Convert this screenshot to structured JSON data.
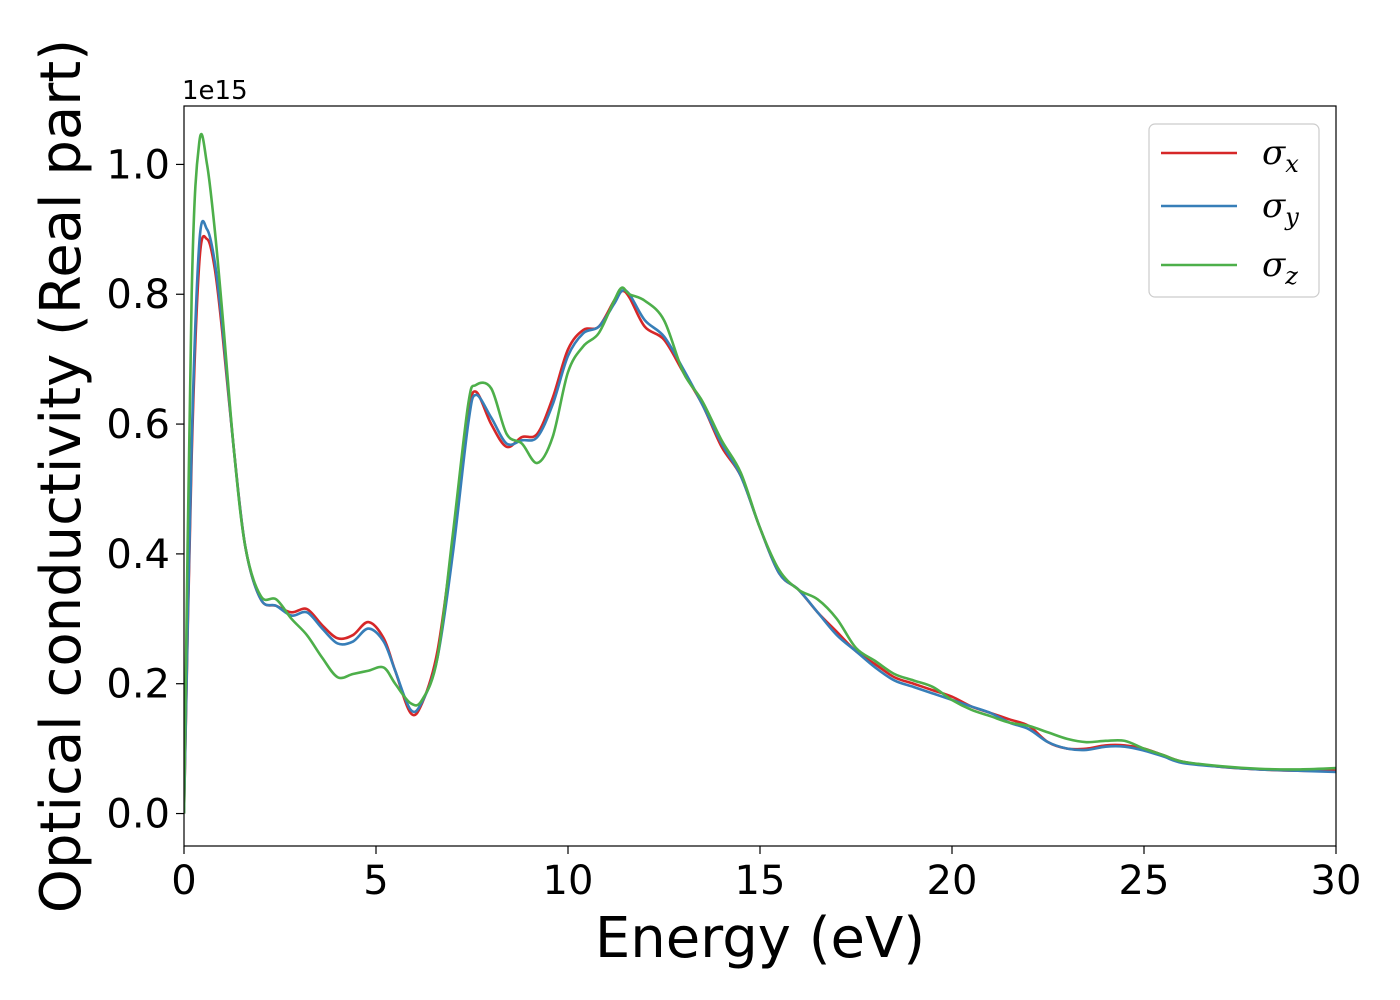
{
  "chart_data": {
    "type": "line",
    "title": "",
    "xlabel": "Energy (eV)",
    "ylabel": "Optical conductivity (Real part)",
    "y_offset_label": "1e15",
    "xlim": [
      0,
      30
    ],
    "ylim": [
      -0.05,
      1.09
    ],
    "xticks": [
      0,
      5,
      10,
      15,
      20,
      25,
      30
    ],
    "xtick_labels": [
      "0",
      "5",
      "10",
      "15",
      "20",
      "25",
      "30"
    ],
    "yticks": [
      0.0,
      0.2,
      0.4,
      0.6,
      0.8,
      1.0
    ],
    "ytick_labels": [
      "0.0",
      "0.2",
      "0.4",
      "0.6",
      "0.8",
      "1.0"
    ],
    "grid": false,
    "legend_position": "top-right",
    "series": [
      {
        "name": "σx",
        "symbol": "σ",
        "subscript": "x",
        "color": "#d62728",
        "x": [
          0,
          0.2,
          0.4,
          0.6,
          0.8,
          1.0,
          1.3,
          1.6,
          2.0,
          2.4,
          2.8,
          3.2,
          3.6,
          4.0,
          4.4,
          4.8,
          5.2,
          5.5,
          5.9,
          6.2,
          6.6,
          7.0,
          7.4,
          7.6,
          8.0,
          8.4,
          8.8,
          9.2,
          9.6,
          10.0,
          10.4,
          10.8,
          11.2,
          11.4,
          11.6,
          12.0,
          12.5,
          13.0,
          13.5,
          14.0,
          14.5,
          15.0,
          15.5,
          16.0,
          16.5,
          17.0,
          17.5,
          18.0,
          18.5,
          19.0,
          19.5,
          20.0,
          20.5,
          21.0,
          21.5,
          22.0,
          22.5,
          23.0,
          23.5,
          24.0,
          24.5,
          25.0,
          25.5,
          26.0,
          27.0,
          28.0,
          29.0,
          30.0
        ],
        "values": [
          0.0,
          0.55,
          0.85,
          0.885,
          0.84,
          0.74,
          0.56,
          0.41,
          0.33,
          0.32,
          0.31,
          0.315,
          0.29,
          0.27,
          0.275,
          0.295,
          0.27,
          0.22,
          0.155,
          0.17,
          0.25,
          0.42,
          0.61,
          0.65,
          0.6,
          0.565,
          0.58,
          0.585,
          0.64,
          0.715,
          0.745,
          0.75,
          0.79,
          0.805,
          0.795,
          0.75,
          0.73,
          0.68,
          0.63,
          0.565,
          0.52,
          0.44,
          0.37,
          0.345,
          0.31,
          0.28,
          0.25,
          0.23,
          0.21,
          0.2,
          0.19,
          0.18,
          0.165,
          0.155,
          0.145,
          0.135,
          0.11,
          0.1,
          0.1,
          0.105,
          0.105,
          0.1,
          0.09,
          0.08,
          0.072,
          0.068,
          0.066,
          0.066
        ]
      },
      {
        "name": "σy",
        "symbol": "σ",
        "subscript": "y",
        "color": "#377eb8",
        "x": [
          0,
          0.2,
          0.4,
          0.6,
          0.8,
          1.0,
          1.3,
          1.6,
          2.0,
          2.4,
          2.8,
          3.2,
          3.6,
          4.0,
          4.4,
          4.8,
          5.2,
          5.5,
          5.9,
          6.2,
          6.6,
          7.0,
          7.4,
          7.6,
          8.0,
          8.4,
          8.8,
          9.2,
          9.6,
          10.0,
          10.4,
          10.8,
          11.2,
          11.4,
          11.6,
          12.0,
          12.5,
          13.0,
          13.5,
          14.0,
          14.5,
          15.0,
          15.5,
          16.0,
          16.5,
          17.0,
          17.5,
          18.0,
          18.5,
          19.0,
          19.5,
          20.0,
          20.5,
          21.0,
          21.5,
          22.0,
          22.5,
          23.0,
          23.5,
          24.0,
          24.5,
          25.0,
          25.5,
          26.0,
          27.0,
          28.0,
          29.0,
          30.0
        ],
        "values": [
          0.0,
          0.57,
          0.88,
          0.9,
          0.85,
          0.75,
          0.56,
          0.41,
          0.33,
          0.32,
          0.305,
          0.31,
          0.285,
          0.262,
          0.265,
          0.285,
          0.265,
          0.22,
          0.16,
          0.172,
          0.24,
          0.4,
          0.6,
          0.645,
          0.61,
          0.57,
          0.575,
          0.58,
          0.63,
          0.705,
          0.74,
          0.75,
          0.785,
          0.805,
          0.8,
          0.76,
          0.735,
          0.685,
          0.63,
          0.57,
          0.52,
          0.44,
          0.37,
          0.345,
          0.31,
          0.275,
          0.25,
          0.225,
          0.205,
          0.195,
          0.185,
          0.175,
          0.165,
          0.155,
          0.14,
          0.13,
          0.11,
          0.1,
          0.098,
          0.103,
          0.103,
          0.097,
          0.088,
          0.078,
          0.072,
          0.068,
          0.066,
          0.064
        ]
      },
      {
        "name": "σz",
        "symbol": "σ",
        "subscript": "z",
        "color": "#4daf4a",
        "x": [
          0,
          0.2,
          0.4,
          0.6,
          0.8,
          1.0,
          1.3,
          1.6,
          2.0,
          2.4,
          2.8,
          3.2,
          3.6,
          4.0,
          4.4,
          4.8,
          5.2,
          5.5,
          5.9,
          6.2,
          6.6,
          7.0,
          7.4,
          7.6,
          8.0,
          8.4,
          8.8,
          9.2,
          9.6,
          10.0,
          10.4,
          10.8,
          11.2,
          11.4,
          11.6,
          12.0,
          12.5,
          13.0,
          13.5,
          14.0,
          14.5,
          15.0,
          15.5,
          16.0,
          16.5,
          17.0,
          17.5,
          18.0,
          18.5,
          19.0,
          19.5,
          20.0,
          20.5,
          21.0,
          21.5,
          22.0,
          22.5,
          23.0,
          23.5,
          24.0,
          24.5,
          25.0,
          25.5,
          26.0,
          27.0,
          28.0,
          29.0,
          30.0
        ],
        "values": [
          0.0,
          0.8,
          1.035,
          1.0,
          0.9,
          0.77,
          0.56,
          0.41,
          0.335,
          0.33,
          0.3,
          0.275,
          0.24,
          0.21,
          0.215,
          0.22,
          0.225,
          0.2,
          0.17,
          0.175,
          0.24,
          0.43,
          0.63,
          0.66,
          0.655,
          0.585,
          0.57,
          0.54,
          0.58,
          0.68,
          0.72,
          0.74,
          0.79,
          0.81,
          0.8,
          0.79,
          0.76,
          0.68,
          0.635,
          0.575,
          0.525,
          0.44,
          0.375,
          0.345,
          0.33,
          0.3,
          0.255,
          0.235,
          0.215,
          0.205,
          0.195,
          0.175,
          0.16,
          0.15,
          0.14,
          0.135,
          0.125,
          0.115,
          0.11,
          0.112,
          0.112,
          0.1,
          0.09,
          0.08,
          0.073,
          0.069,
          0.068,
          0.07
        ]
      }
    ]
  }
}
